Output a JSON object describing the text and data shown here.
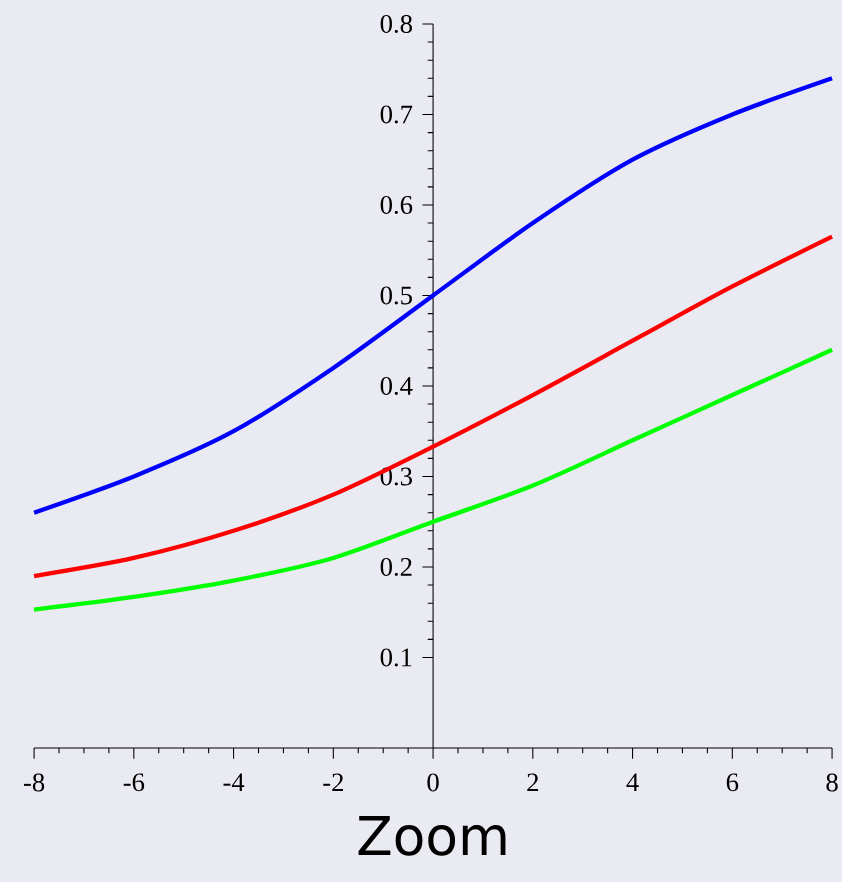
{
  "chart_data": {
    "type": "line",
    "xlabel": "Zoom",
    "x": [
      -8,
      -6,
      -4,
      -2,
      0,
      2,
      4,
      6,
      8
    ],
    "series": [
      {
        "color": "#0000ff",
        "values": [
          0.26,
          0.3,
          0.35,
          0.42,
          0.5,
          0.58,
          0.65,
          0.7,
          0.74
        ]
      },
      {
        "color": "#ff0000",
        "values": [
          0.19,
          0.21,
          0.24,
          0.28,
          0.333,
          0.39,
          0.45,
          0.51,
          0.565
        ]
      },
      {
        "color": "#00ff00",
        "values": [
          0.153,
          0.167,
          0.185,
          0.21,
          0.25,
          0.29,
          0.34,
          0.39,
          0.44
        ]
      }
    ],
    "xlim": [
      -8,
      8
    ],
    "ylim": [
      0,
      0.8
    ],
    "xticks": [
      -8,
      -6,
      -4,
      -2,
      0,
      2,
      4,
      6,
      8
    ],
    "yticks": [
      0.1,
      0.2,
      0.3,
      0.4,
      0.5,
      0.6,
      0.7,
      0.8
    ]
  }
}
